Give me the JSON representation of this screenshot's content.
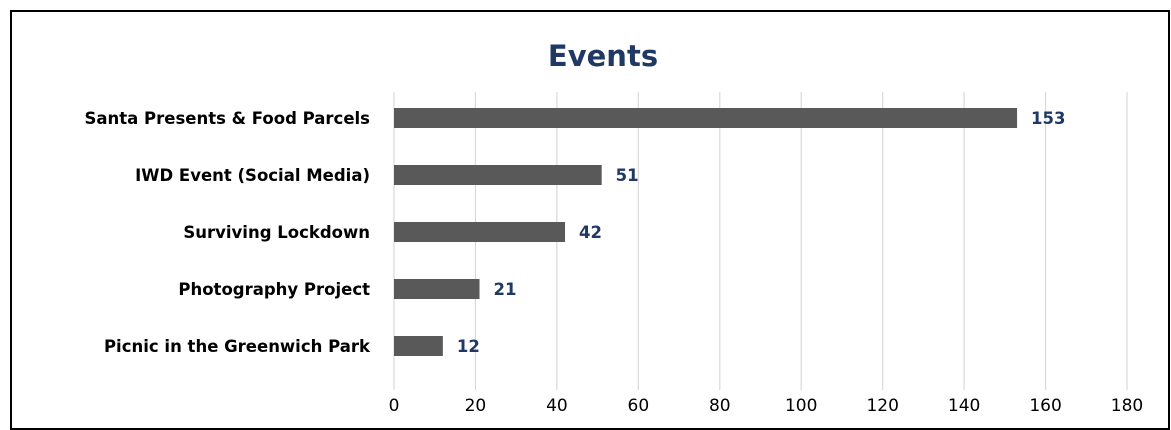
{
  "chart_data": {
    "type": "bar",
    "orientation": "horizontal",
    "title": "Events",
    "categories": [
      "Santa Presents & Food Parcels",
      "IWD Event (Social Media)",
      "Surviving Lockdown",
      "Photography Project",
      "Picnic in the Greenwich Park"
    ],
    "values": [
      153,
      51,
      42,
      21,
      12
    ],
    "data_labels": [
      "153",
      "51",
      "42",
      "21",
      "12"
    ],
    "xlim": [
      0,
      180
    ],
    "x_ticks": [
      "0",
      "20",
      "40",
      "60",
      "80",
      "100",
      "120",
      "140",
      "160",
      "180"
    ],
    "grid": true,
    "legend": "none",
    "colors": {
      "bar": "#595959",
      "title": "#1f3864",
      "data_label": "#1f3864",
      "grid": "#d9d9d9"
    }
  }
}
